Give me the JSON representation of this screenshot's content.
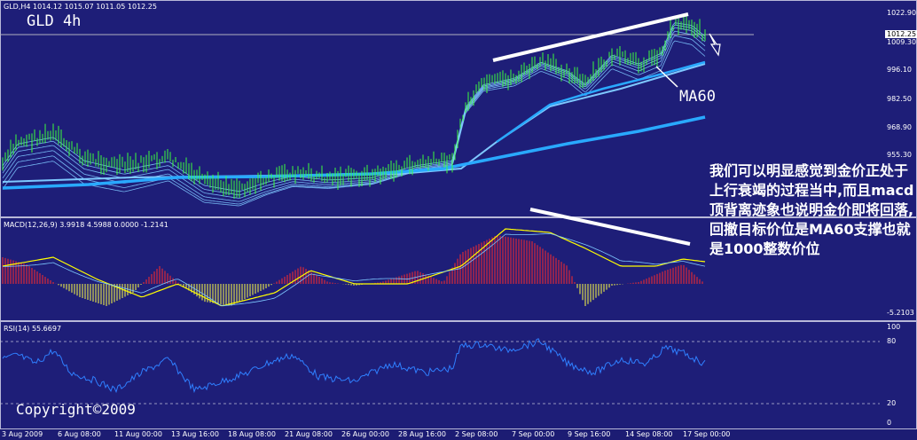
{
  "header": {
    "symbol_info": "GLD,H4  1014.12 1015.07 1011.05 1012.25",
    "big_title": "GLD 4h"
  },
  "price_axis": {
    "ticks": [
      "1022.90",
      "1012.25",
      "1009.30",
      "996.10",
      "982.50",
      "968.90",
      "955.30"
    ],
    "current_price": "1012.25"
  },
  "annotations": {
    "ma60_label": "MA60",
    "commentary": "我们可以明显感觉到金价正处于上行衰竭的过程当中,而且macd顶背离迹象也说明金价即将回落,回撤目标价位是MA60支撑也就是1000整数价位"
  },
  "macd_panel": {
    "title": "MACD(12,26,9) 3.9918 4.5988 0.0000 -1.2141",
    "ticks": [
      "-5.2103"
    ]
  },
  "rsi_panel": {
    "title": "RSI(14) 55.6697",
    "ticks": [
      "100",
      "80",
      "20",
      "0"
    ]
  },
  "copyright": "Copyright©2009",
  "time_axis": [
    "3 Aug 2009",
    "6 Aug 08:00",
    "11 Aug 00:00",
    "13 Aug 16:00",
    "18 Aug 08:00",
    "21 Aug 08:00",
    "26 Aug 00:00",
    "28 Aug 16:00",
    "2 Sep 08:00",
    "7 Sep 00:00",
    "9 Sep 16:00",
    "14 Sep 08:00",
    "17 Sep 00:00"
  ],
  "colors": {
    "background": "#1e1e78",
    "candles": "#3cff3c",
    "ma_long": "#29a9ff",
    "ma_fan": "#7ec8ff",
    "histogram_pos": "#ff2a2a",
    "histogram_neg": "#ffff44",
    "macd_signal": "#ffff00",
    "rsi_line": "#2f7fff"
  }
}
